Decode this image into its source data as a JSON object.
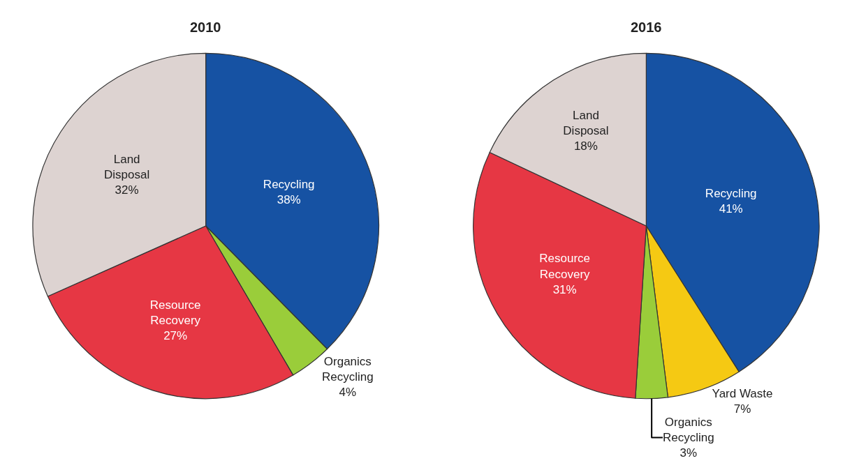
{
  "chart_data": [
    {
      "type": "pie",
      "title": "2010",
      "categories": [
        "Recycling",
        "Organics Recycling",
        "Resource Recovery",
        "Land Disposal"
      ],
      "values": [
        38,
        4,
        27,
        32
      ],
      "value_labels": [
        "38%",
        "4%",
        "27%",
        "32%"
      ],
      "colors": [
        "#1652a3",
        "#9acd3a",
        "#e63744",
        "#ddd3d1"
      ]
    },
    {
      "type": "pie",
      "title": "2016",
      "categories": [
        "Recycling",
        "Yard Waste",
        "Organics Recycling",
        "Resource Recovery",
        "Land Disposal"
      ],
      "values": [
        41,
        7,
        3,
        31,
        18
      ],
      "value_labels": [
        "41%",
        "7%",
        "3%",
        "31%",
        "18%"
      ],
      "colors": [
        "#1652a3",
        "#f5c913",
        "#9acd3a",
        "#e63744",
        "#ddd3d1"
      ]
    }
  ]
}
